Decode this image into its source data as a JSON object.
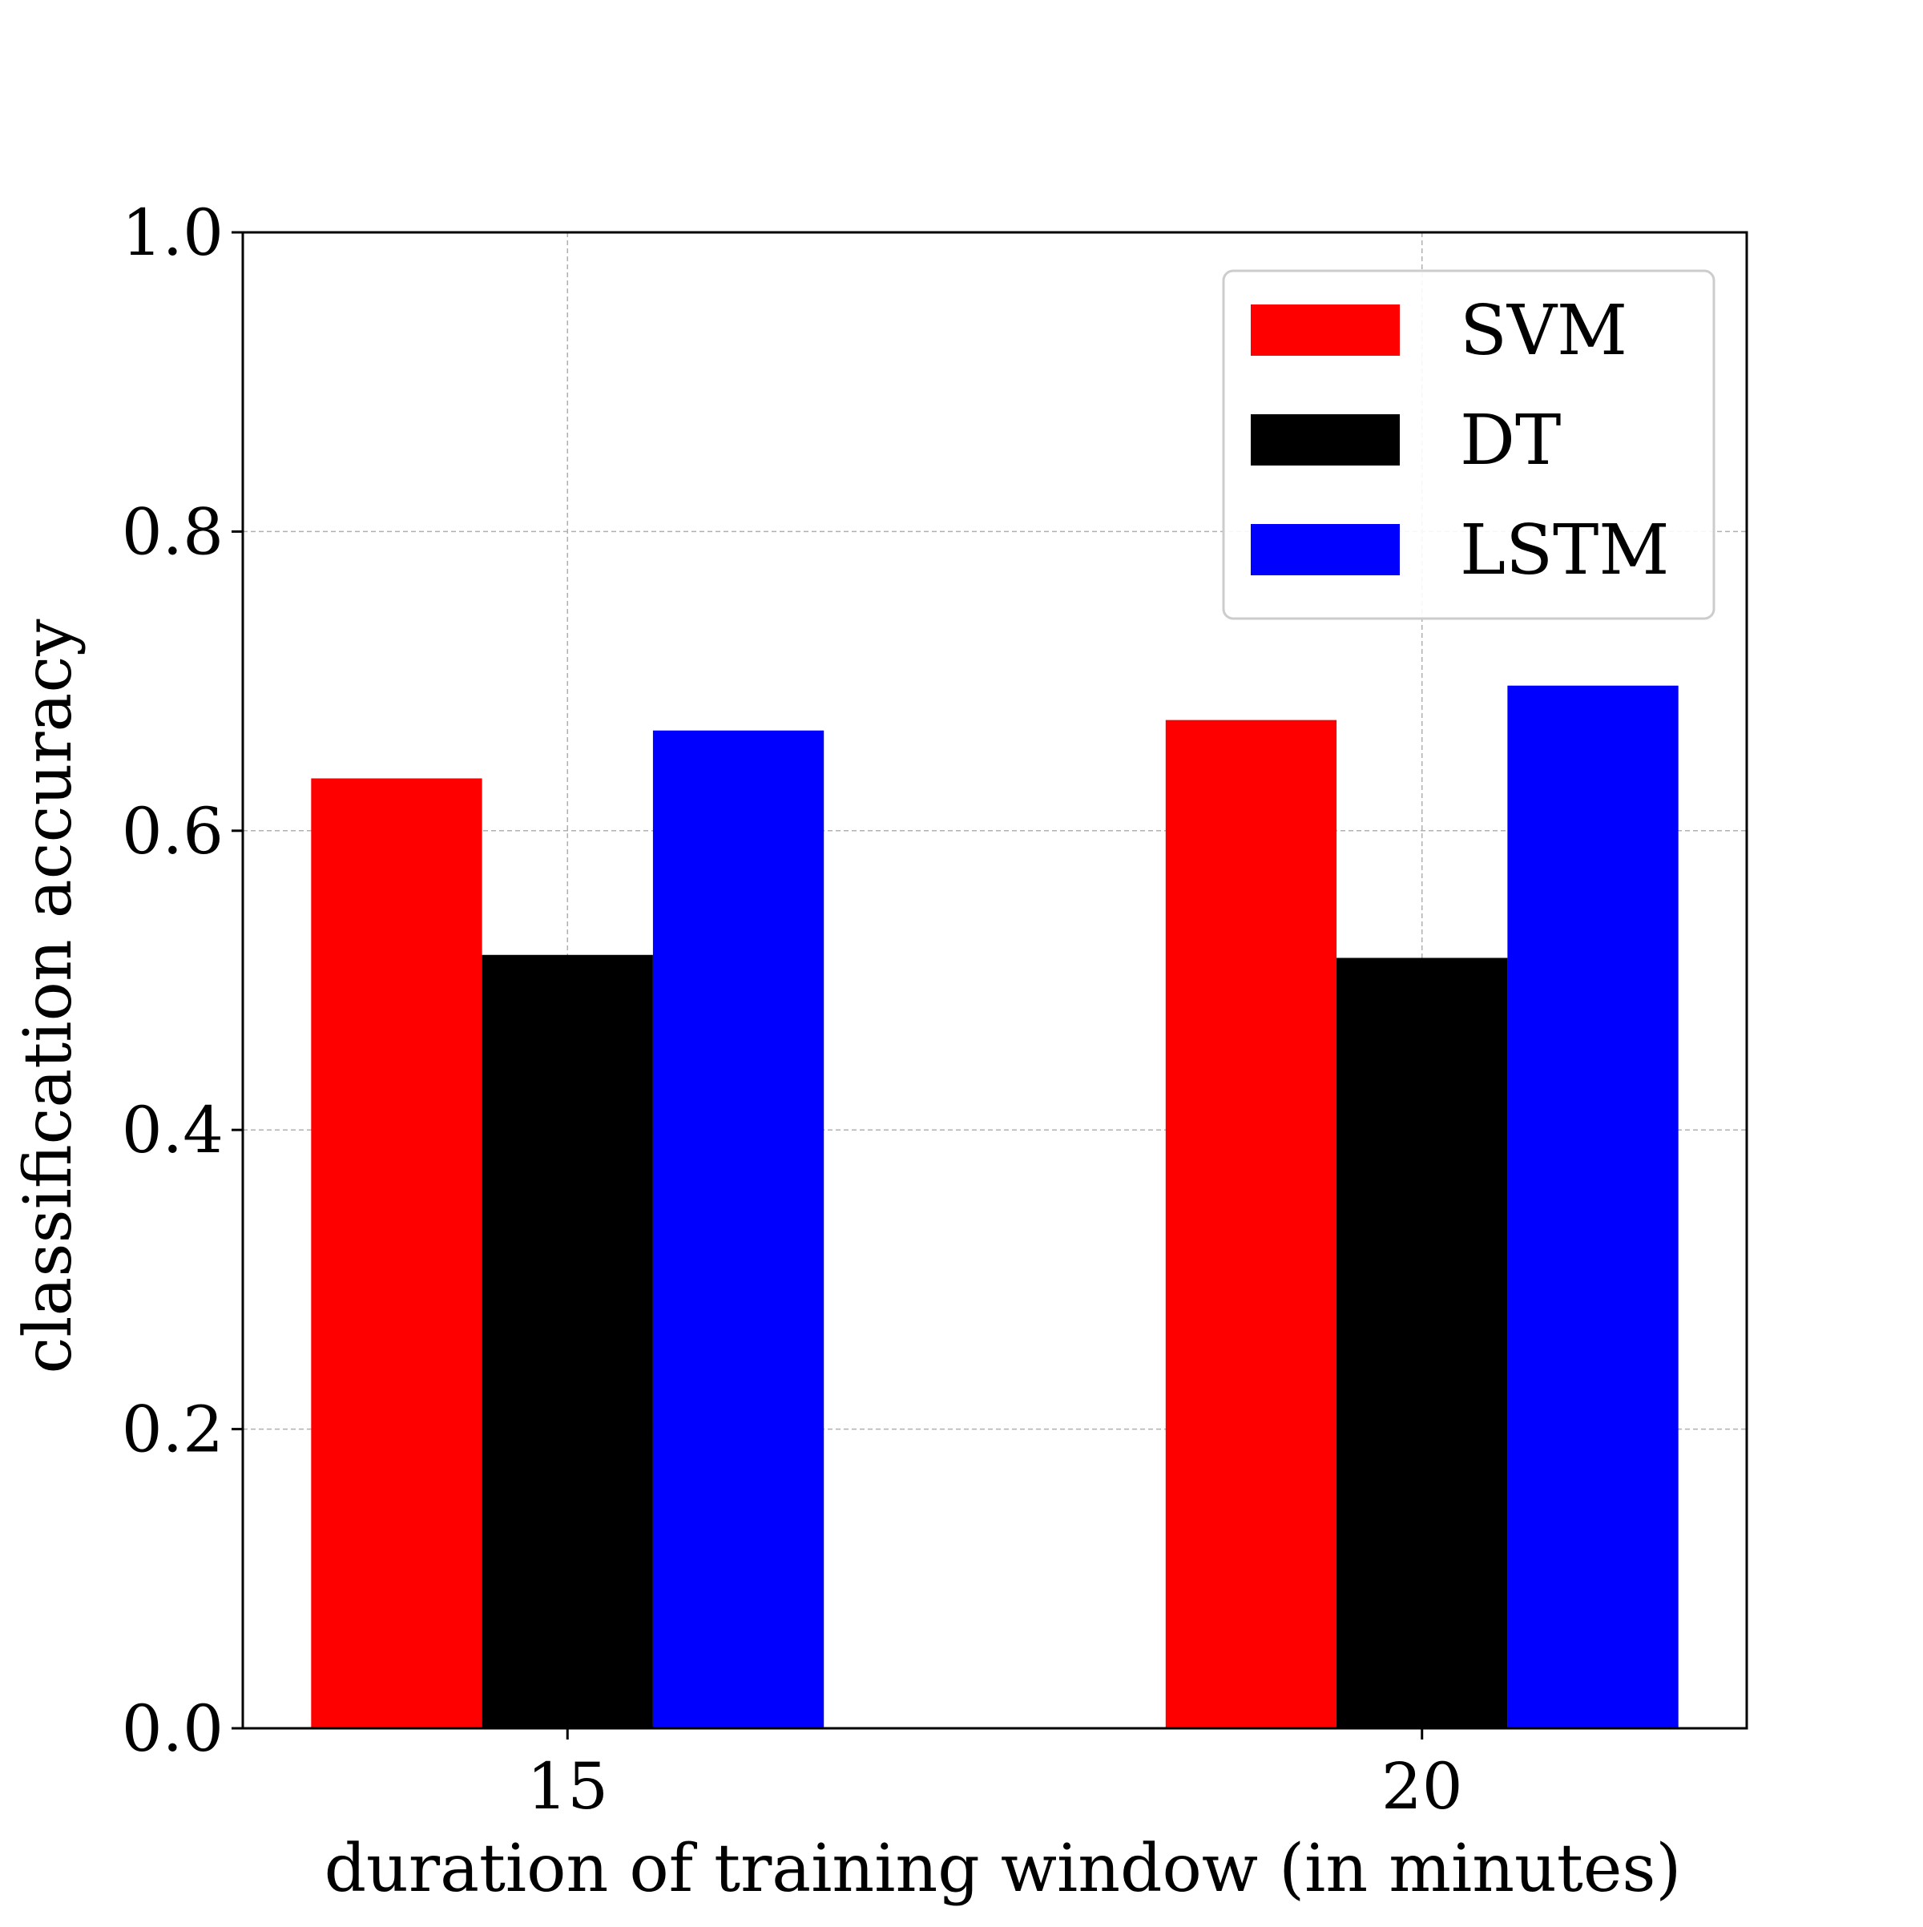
{
  "chart_data": {
    "type": "bar",
    "title": "",
    "xlabel": "duration of training window (in minutes)",
    "ylabel": "classification accuracy",
    "categories": [
      "15",
      "20"
    ],
    "series": [
      {
        "name": "SVM",
        "color": "#ff0000",
        "values": [
          0.635,
          0.674
        ]
      },
      {
        "name": "DT",
        "color": "#000000",
        "values": [
          0.517,
          0.515
        ]
      },
      {
        "name": "LSTM",
        "color": "#0000ff",
        "values": [
          0.667,
          0.697
        ]
      }
    ],
    "ylim": [
      0,
      1.0
    ],
    "yticks": [
      "0.0",
      "0.2",
      "0.4",
      "0.6",
      "0.8",
      "1.0"
    ],
    "grid": true,
    "legend_position": "top-right"
  }
}
